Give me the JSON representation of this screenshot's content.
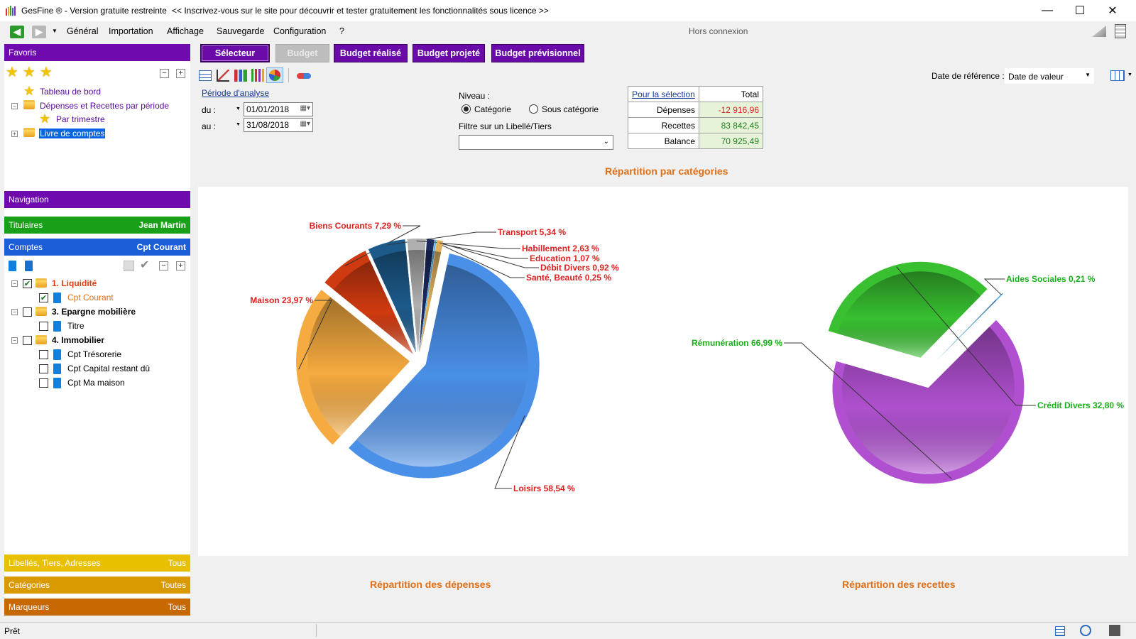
{
  "titlebar": {
    "app_name": "GesFine ® - Version gratuite restreinte",
    "promo": "<< Inscrivez-vous sur le site pour découvrir et tester gratuitement les fonctionnalités sous licence >>",
    "minimize": "—",
    "maximize": "☐",
    "close": "✕"
  },
  "menu": {
    "items": [
      "Général",
      "Importation",
      "Affichage",
      "Sauvegarde",
      "Configuration",
      "?"
    ],
    "connection_status": "Hors connexion"
  },
  "sidebar": {
    "favoris": {
      "header": "Favoris",
      "items": [
        {
          "label": "Tableau de bord"
        },
        {
          "label": "Dépenses et Recettes par période"
        },
        {
          "label": "Par trimestre"
        },
        {
          "label": "Livre de comptes"
        }
      ]
    },
    "navigation": {
      "header": "Navigation"
    },
    "titulaires": {
      "header": "Titulaires",
      "value": "Jean Martin"
    },
    "comptes": {
      "header": "Comptes",
      "value": "Cpt Courant",
      "tree": [
        {
          "label": "1. Liquidité"
        },
        {
          "label": "Cpt Courant"
        },
        {
          "label": "3. Epargne mobilière"
        },
        {
          "label": "Titre"
        },
        {
          "label": "4. Immobilier"
        },
        {
          "label": "Cpt Trésorerie"
        },
        {
          "label": "Cpt Capital restant dû"
        },
        {
          "label": "Cpt Ma maison"
        }
      ]
    },
    "libelles": {
      "header": "Libellés, Tiers, Adresses",
      "value": "Tous"
    },
    "categories": {
      "header": "Catégories",
      "value": "Toutes"
    },
    "marqueurs": {
      "header": "Marqueurs",
      "value": "Tous"
    }
  },
  "tabs": {
    "selecteur": "Sélecteur",
    "budget": "Budget",
    "budget_realise": "Budget réalisé",
    "budget_projete": "Budget projeté",
    "budget_previsionnel": "Budget prévisionnel"
  },
  "toolbar": {
    "date_ref_label": "Date de référence :",
    "date_ref_value": "Date de valeur"
  },
  "filters": {
    "periode_label": "Période d'analyse",
    "du_label": "du :",
    "du_value": "01/01/2018",
    "au_label": "au :",
    "au_value": "31/08/2018",
    "niveau_label": "Niveau :",
    "radio_categorie": "Catégorie",
    "radio_sous_categorie": "Sous catégorie",
    "filtre_label": "Filtre sur un Libellé/Tiers"
  },
  "summary": {
    "header_selection": "Pour la sélection",
    "header_total": "Total",
    "rows": [
      {
        "label": "Dépenses",
        "value": "-12 916,96"
      },
      {
        "label": "Recettes",
        "value": "83 842,45"
      },
      {
        "label": "Balance",
        "value": "70 925,49"
      }
    ]
  },
  "chart_titles": {
    "main": "Répartition par catégories",
    "expenses": "Répartition des dépenses",
    "income": "Répartition des recettes"
  },
  "chart_data": [
    {
      "type": "pie",
      "slices": [
        {
          "label": "Loisirs 58,54 %",
          "value": 58.54,
          "color": "#4a8fe8"
        },
        {
          "label": "Maison 23,97 %",
          "value": 23.97,
          "color": "#f6ab40"
        },
        {
          "label": "Biens Courants 7,29 %",
          "value": 7.29,
          "color": "#d03a10"
        },
        {
          "label": "Transport 5,34 %",
          "value": 5.34,
          "color": "#1c5a8a"
        },
        {
          "label": "Habillement 2,63 %",
          "value": 2.63,
          "color": "#b0b0b0"
        },
        {
          "label": "Education 1,07 %",
          "value": 1.07,
          "color": "#1a2a60"
        },
        {
          "label": "Santé, Beauté 0,25 %",
          "value": 0.25,
          "color": "#5ab0e0"
        },
        {
          "label": "Débit Divers 0,92 %",
          "value": 0.92,
          "color": "#e0b060"
        }
      ]
    },
    {
      "type": "pie",
      "slices": [
        {
          "label": "Rémunération 66,99 %",
          "value": 66.99,
          "color": "#b050d0"
        },
        {
          "label": "Crédit Divers 32,80 %",
          "value": 32.8,
          "color": "#38c030"
        },
        {
          "label": "Aides Sociales 0,21 %",
          "value": 0.21,
          "color": "#5ab0e0"
        }
      ]
    }
  ],
  "statusbar": {
    "text": "Prêt"
  }
}
